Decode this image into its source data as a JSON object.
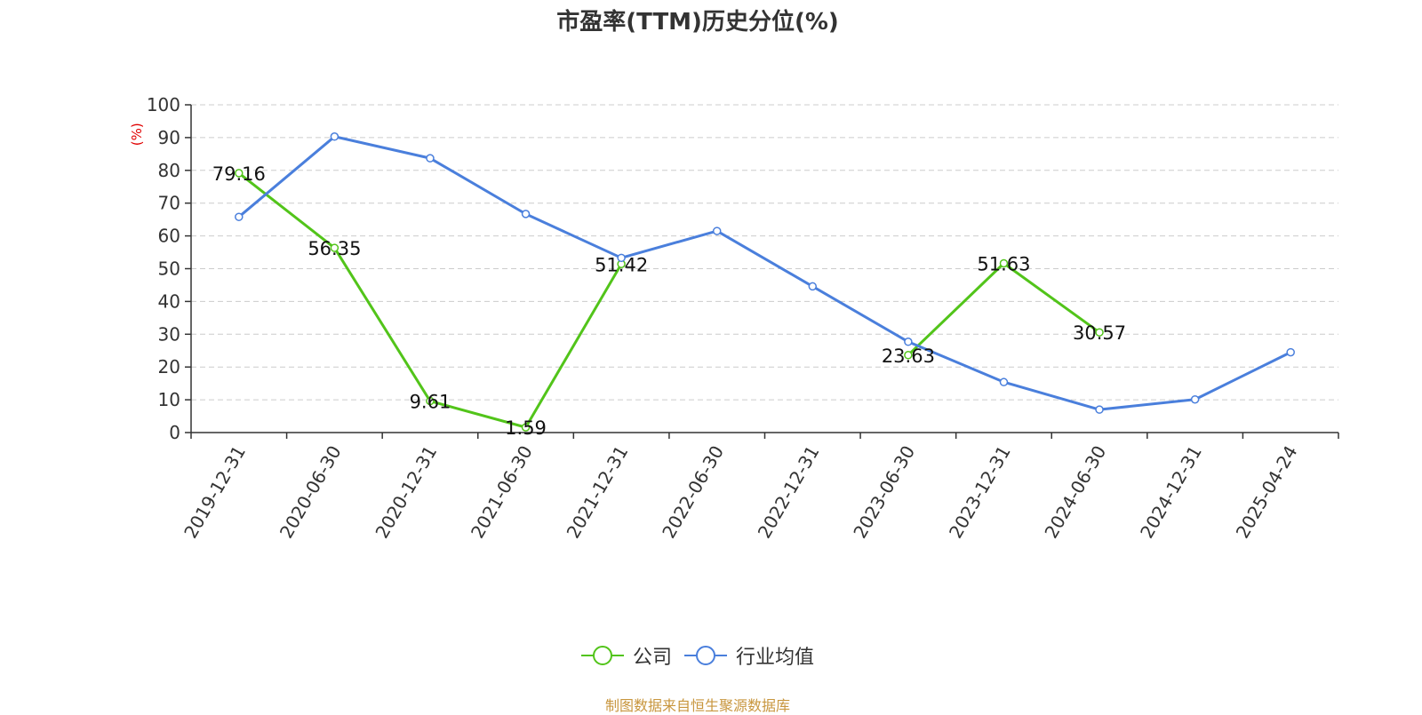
{
  "chart_data": {
    "type": "line",
    "title": "市盈率(TTM)历史分位(%)",
    "ylabel": "(%)",
    "ylim": [
      0,
      100
    ],
    "yticks": [
      0,
      10,
      20,
      30,
      40,
      50,
      60,
      70,
      80,
      90,
      100
    ],
    "grid": true,
    "legend_position": "bottom",
    "categories": [
      "2019-12-31",
      "2020-06-30",
      "2020-12-31",
      "2021-06-30",
      "2021-12-31",
      "2022-06-30",
      "2022-12-31",
      "2023-06-30",
      "2023-12-31",
      "2024-06-30",
      "2024-12-31",
      "2025-04-24"
    ],
    "series": [
      {
        "name": "公司",
        "color": "#52c41a",
        "values": [
          79.16,
          56.35,
          9.61,
          1.59,
          51.42,
          null,
          null,
          23.63,
          51.63,
          30.57,
          null,
          null
        ],
        "labels": [
          "79.16",
          "56.35",
          "9.61",
          "1.59",
          "51.42",
          null,
          null,
          "23.63",
          "51.63",
          "30.57",
          null,
          null
        ]
      },
      {
        "name": "行业均值",
        "color": "#4a7fdc",
        "values": [
          65.8,
          90.3,
          83.7,
          66.7,
          53.3,
          61.5,
          44.6,
          27.7,
          15.4,
          7.0,
          10.1,
          24.5
        ]
      }
    ]
  },
  "source": "制图数据来自恒生聚源数据库"
}
